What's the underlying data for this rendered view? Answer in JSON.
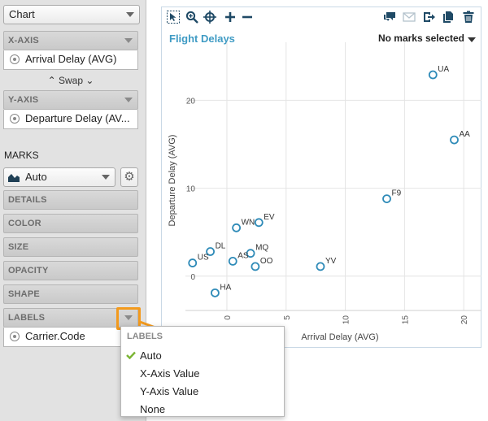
{
  "sidebar": {
    "chart_type": "Chart",
    "x_axis_shelf": "X-AXIS",
    "x_axis_field": "Arrival Delay (AVG)",
    "swap_label": "Swap",
    "y_axis_shelf": "Y-AXIS",
    "y_axis_field": "Departure Delay (AV...",
    "marks_label": "MARKS",
    "marks_type": "Auto",
    "shelves": [
      "DETAILS",
      "COLOR",
      "SIZE",
      "OPACITY",
      "SHAPE"
    ],
    "labels_shelf": "LABELS",
    "labels_field": "Carrier.Code"
  },
  "toolbar_icons": [
    "select-icon",
    "zoom-icon",
    "pan-icon",
    "add-icon",
    "remove-icon",
    "comment-icon",
    "email-icon",
    "export-icon",
    "copy-icon",
    "trash-icon"
  ],
  "chart_panel": {
    "title": "Flight Delays",
    "selection_status": "No marks selected"
  },
  "popup": {
    "header": "LABELS",
    "items": [
      "Auto",
      "X-Axis Value",
      "Y-Axis Value",
      "None"
    ],
    "selected": "Auto"
  },
  "colors": {
    "accent": "#3f9bc4",
    "marker": "#2f8bb8",
    "highlight": "#f39a1d",
    "check": "#7bb534"
  },
  "chart_data": {
    "type": "scatter",
    "title": "Flight Delays",
    "xlabel": "Arrival Delay (AVG)",
    "ylabel": "Departure Delay (AVG)",
    "xticks": [
      0,
      5,
      10,
      15,
      20
    ],
    "yticks": [
      0,
      10,
      20
    ],
    "xlim": [
      -3.5,
      21.5
    ],
    "ylim": [
      -3.9,
      26.6
    ],
    "grid": true,
    "points": [
      {
        "label": "UA",
        "x": 17.4,
        "y": 22.9
      },
      {
        "label": "AA",
        "x": 19.2,
        "y": 15.5
      },
      {
        "label": "F9",
        "x": 13.5,
        "y": 8.8
      },
      {
        "label": "EV",
        "x": 2.7,
        "y": 6.1
      },
      {
        "label": "WN",
        "x": 0.8,
        "y": 5.5
      },
      {
        "label": "DL",
        "x": -1.4,
        "y": 2.8
      },
      {
        "label": "MQ",
        "x": 2.0,
        "y": 2.6
      },
      {
        "label": "AS",
        "x": 0.5,
        "y": 1.7
      },
      {
        "label": "US",
        "x": -2.9,
        "y": 1.5
      },
      {
        "label": "OO",
        "x": 2.4,
        "y": 1.1
      },
      {
        "label": "YV",
        "x": 7.9,
        "y": 1.1
      },
      {
        "label": "HA",
        "x": -1.0,
        "y": -1.9
      }
    ]
  }
}
